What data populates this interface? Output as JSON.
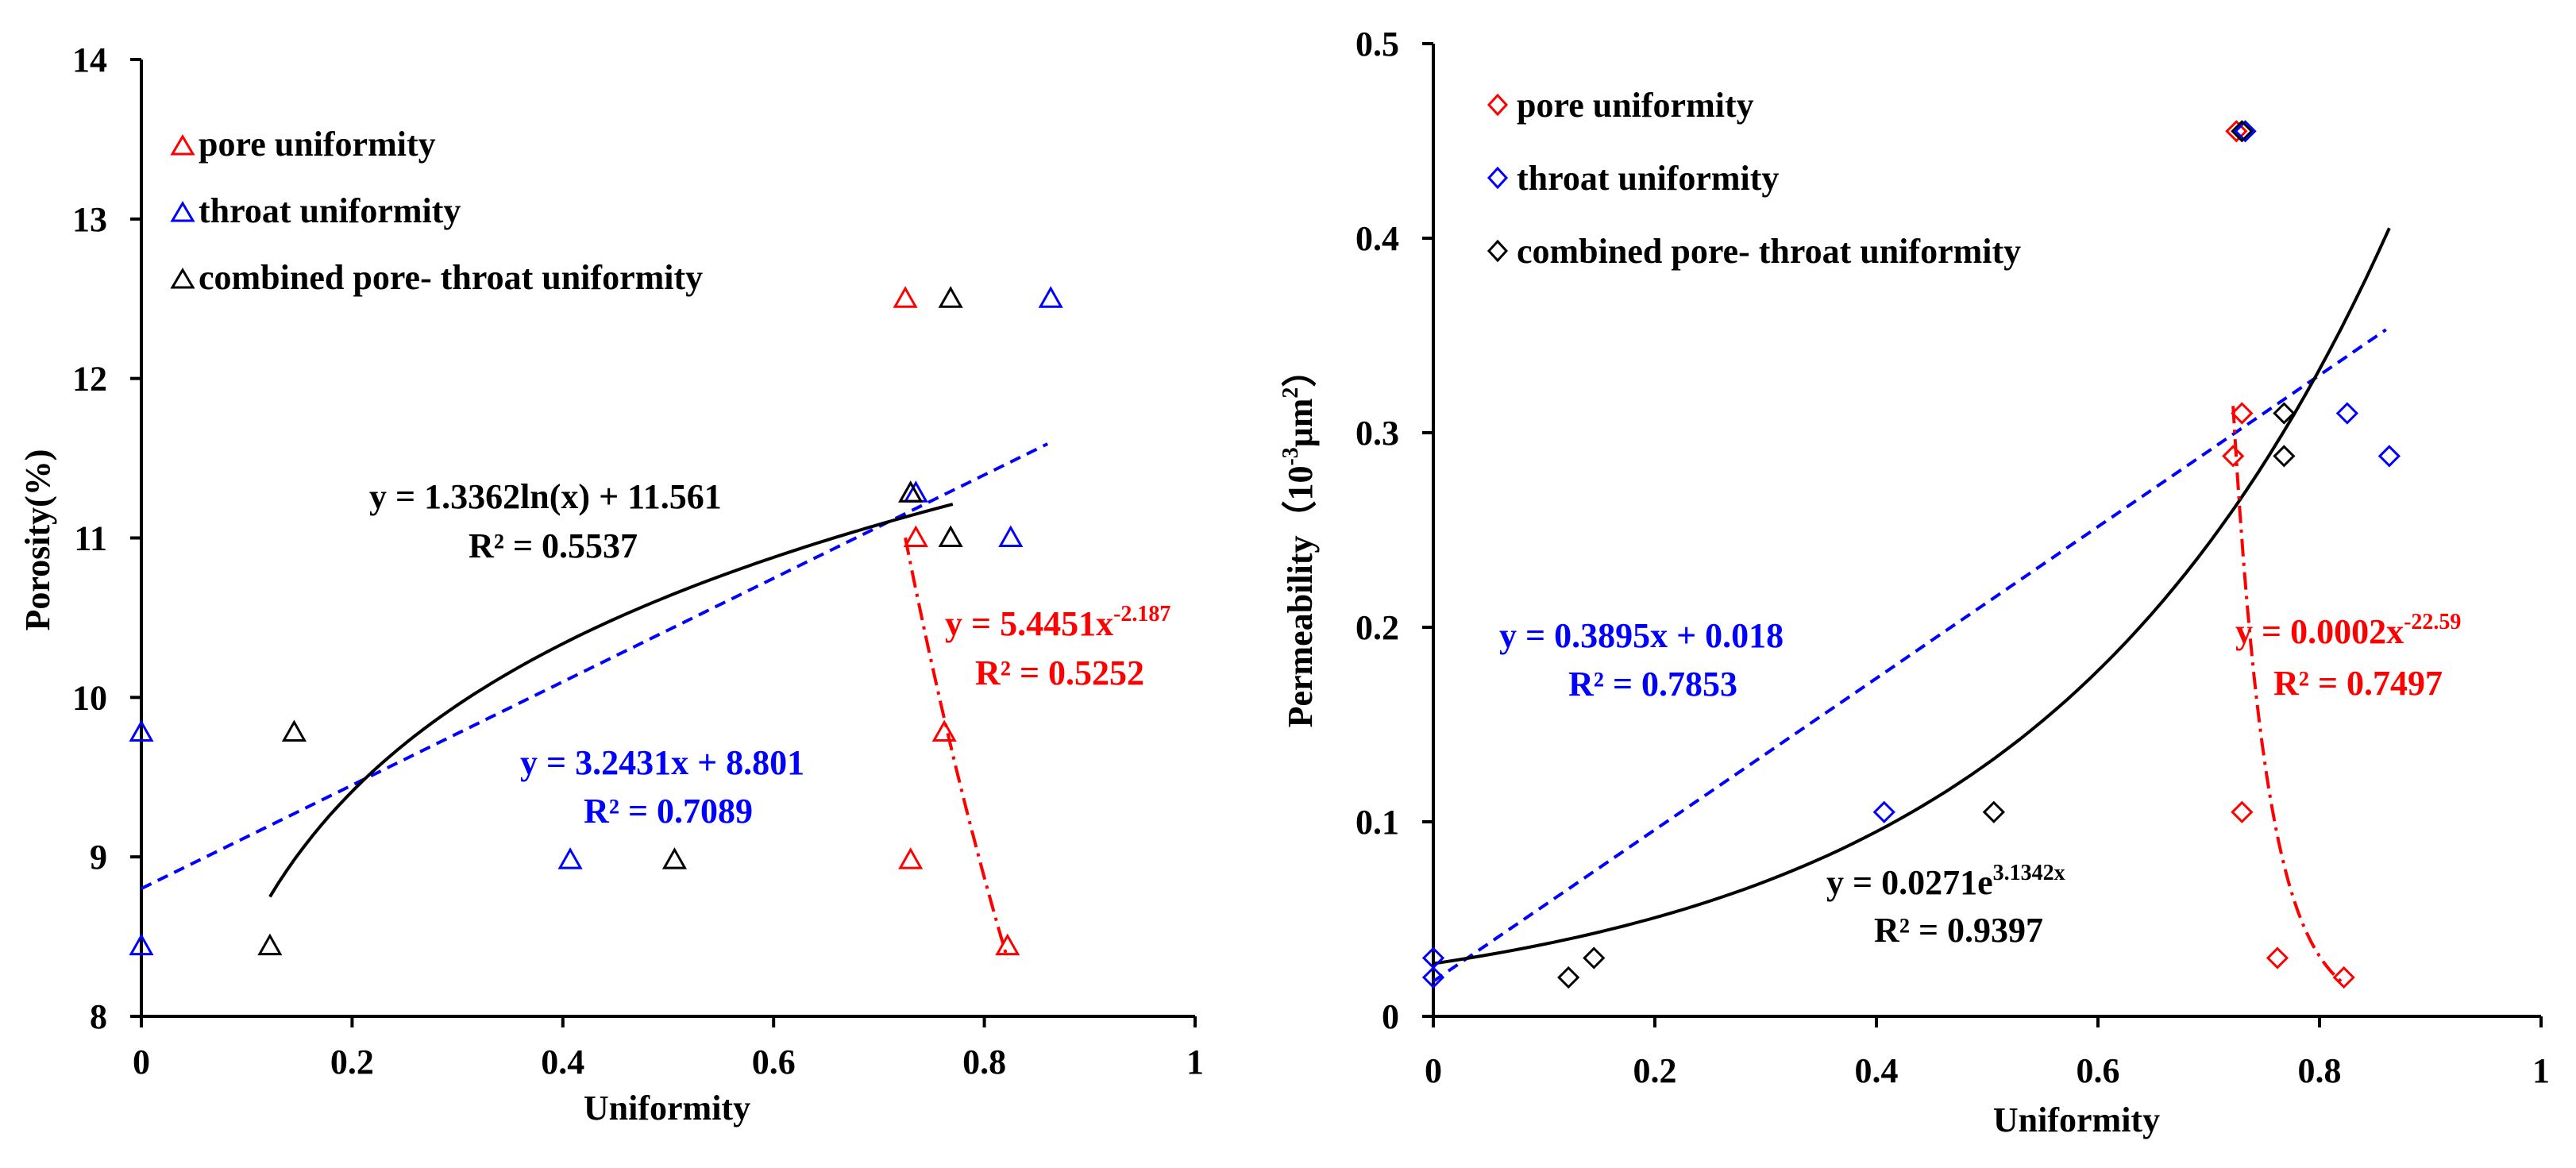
{
  "chart_data": [
    {
      "type": "scatter",
      "ylabel": "Porosity(%)",
      "xlabel": "Uniformity",
      "xlim": [
        0,
        1
      ],
      "ylim": [
        8,
        14
      ],
      "xticks": [
        "0",
        "0.2",
        "0.4",
        "0.6",
        "0.8",
        "1"
      ],
      "yticks": [
        "8",
        "9",
        "10",
        "11",
        "12",
        "13",
        "14"
      ],
      "marker": "triangle",
      "legend": [
        {
          "label": "pore uniformity",
          "color": "#ff0000"
        },
        {
          "label": "throat uniformity",
          "color": "#0000ff"
        },
        {
          "label": "combined pore- throat uniformity",
          "color": "#000000"
        }
      ],
      "series": [
        {
          "name": "pore uniformity",
          "color": "#ff0000",
          "points": [
            [
              0.725,
              12.5
            ],
            [
              0.73,
              11.28
            ],
            [
              0.735,
              11.0
            ],
            [
              0.762,
              9.78
            ],
            [
              0.73,
              8.98
            ],
            [
              0.822,
              8.44
            ]
          ]
        },
        {
          "name": "throat uniformity",
          "color": "#0000ff",
          "points": [
            [
              0.863,
              12.5
            ],
            [
              0.735,
              11.28
            ],
            [
              0.825,
              11.0
            ],
            [
              0.0,
              9.78
            ],
            [
              0.407,
              8.98
            ],
            [
              0.0,
              8.44
            ]
          ]
        },
        {
          "name": "combined pore- throat uniformity",
          "color": "#000000",
          "points": [
            [
              0.768,
              12.5
            ],
            [
              0.73,
              11.28
            ],
            [
              0.768,
              11.0
            ],
            [
              0.145,
              9.78
            ],
            [
              0.506,
              8.98
            ],
            [
              0.122,
              8.44
            ]
          ]
        }
      ],
      "trendlines": [
        {
          "kind": "linear",
          "a": 3.2431,
          "b": 8.801,
          "x_range": [
            0.0,
            0.86
          ],
          "color": "#0000ff",
          "style": "dashed"
        },
        {
          "kind": "log",
          "a": 1.3362,
          "b": 11.561,
          "x_range": [
            0.122,
            0.77
          ],
          "color": "#000000",
          "style": "solid"
        },
        {
          "kind": "power",
          "a": 5.4451,
          "b": -2.187,
          "x_range": [
            0.725,
            0.822
          ],
          "color": "#ff0000",
          "style": "dashdot"
        }
      ],
      "annotations": [
        {
          "eq": "y = 1.3362ln(x) + 11.561",
          "r2": "R² = 0.5537",
          "color": "#000000"
        },
        {
          "eq": "y = 3.2431x + 8.801",
          "r2": "R² = 0.7089",
          "color": "#0000ff"
        },
        {
          "eq_base": "y = 5.4451x",
          "eq_exp": "-2.187",
          "r2": "R² = 0.5252",
          "color": "#ff0000"
        }
      ]
    },
    {
      "type": "scatter",
      "ylabel_main": "Permeability（10",
      "ylabel_sup1": "-3",
      "ylabel_mid": "μm",
      "ylabel_sup2": "2",
      "ylabel_end": "）",
      "xlabel": "Uniformity",
      "xlim": [
        0,
        1
      ],
      "ylim": [
        0,
        0.5
      ],
      "xticks": [
        "0",
        "0.2",
        "0.4",
        "0.6",
        "0.8",
        "1"
      ],
      "yticks": [
        "0",
        "0.1",
        "0.2",
        "0.3",
        "0.4",
        "0.5"
      ],
      "marker": "diamond",
      "legend": [
        {
          "label": "pore uniformity",
          "color": "#ff0000"
        },
        {
          "label": "throat uniformity",
          "color": "#0000ff"
        },
        {
          "label": "combined pore- throat uniformity",
          "color": "#000000"
        }
      ],
      "series": [
        {
          "name": "pore uniformity",
          "color": "#ff0000",
          "points": [
            [
              0.725,
              0.455
            ],
            [
              0.73,
              0.31
            ],
            [
              0.722,
              0.288
            ],
            [
              0.73,
              0.105
            ],
            [
              0.762,
              0.03
            ],
            [
              0.822,
              0.02
            ]
          ]
        },
        {
          "name": "throat uniformity",
          "color": "#0000ff",
          "points": [
            [
              0.733,
              0.455
            ],
            [
              0.825,
              0.31
            ],
            [
              0.863,
              0.288
            ],
            [
              0.407,
              0.105
            ],
            [
              0.0,
              0.03
            ],
            [
              0.0,
              0.02
            ]
          ]
        },
        {
          "name": "combined pore- throat uniformity",
          "color": "#000000",
          "points": [
            [
              0.73,
              0.455
            ],
            [
              0.768,
              0.31
            ],
            [
              0.768,
              0.288
            ],
            [
              0.506,
              0.105
            ],
            [
              0.145,
              0.03
            ],
            [
              0.122,
              0.02
            ]
          ]
        }
      ],
      "trendlines": [
        {
          "kind": "linear",
          "a": 0.3895,
          "b": 0.018,
          "x_range": [
            0.0,
            0.86
          ],
          "color": "#0000ff",
          "style": "dashed"
        },
        {
          "kind": "exp",
          "a": 0.0271,
          "b": 3.1342,
          "x_range": [
            0.0,
            0.863
          ],
          "color": "#000000",
          "style": "solid"
        },
        {
          "kind": "power",
          "a": 0.0002,
          "b": -22.59,
          "x_range": [
            0.722,
            0.822
          ],
          "color": "#ff0000",
          "style": "dashdot"
        }
      ],
      "annotations": [
        {
          "eq": "y = 0.3895x + 0.018",
          "r2": "R² = 0.7853",
          "color": "#0000ff"
        },
        {
          "eq_base": "y = 0.0271e",
          "eq_exp": "3.1342x",
          "r2": "R² = 0.9397",
          "color": "#000000"
        },
        {
          "eq_base": "y = 0.0002x",
          "eq_exp": "-22.59",
          "r2": "R² = 0.7497",
          "color": "#ff0000"
        }
      ]
    }
  ]
}
